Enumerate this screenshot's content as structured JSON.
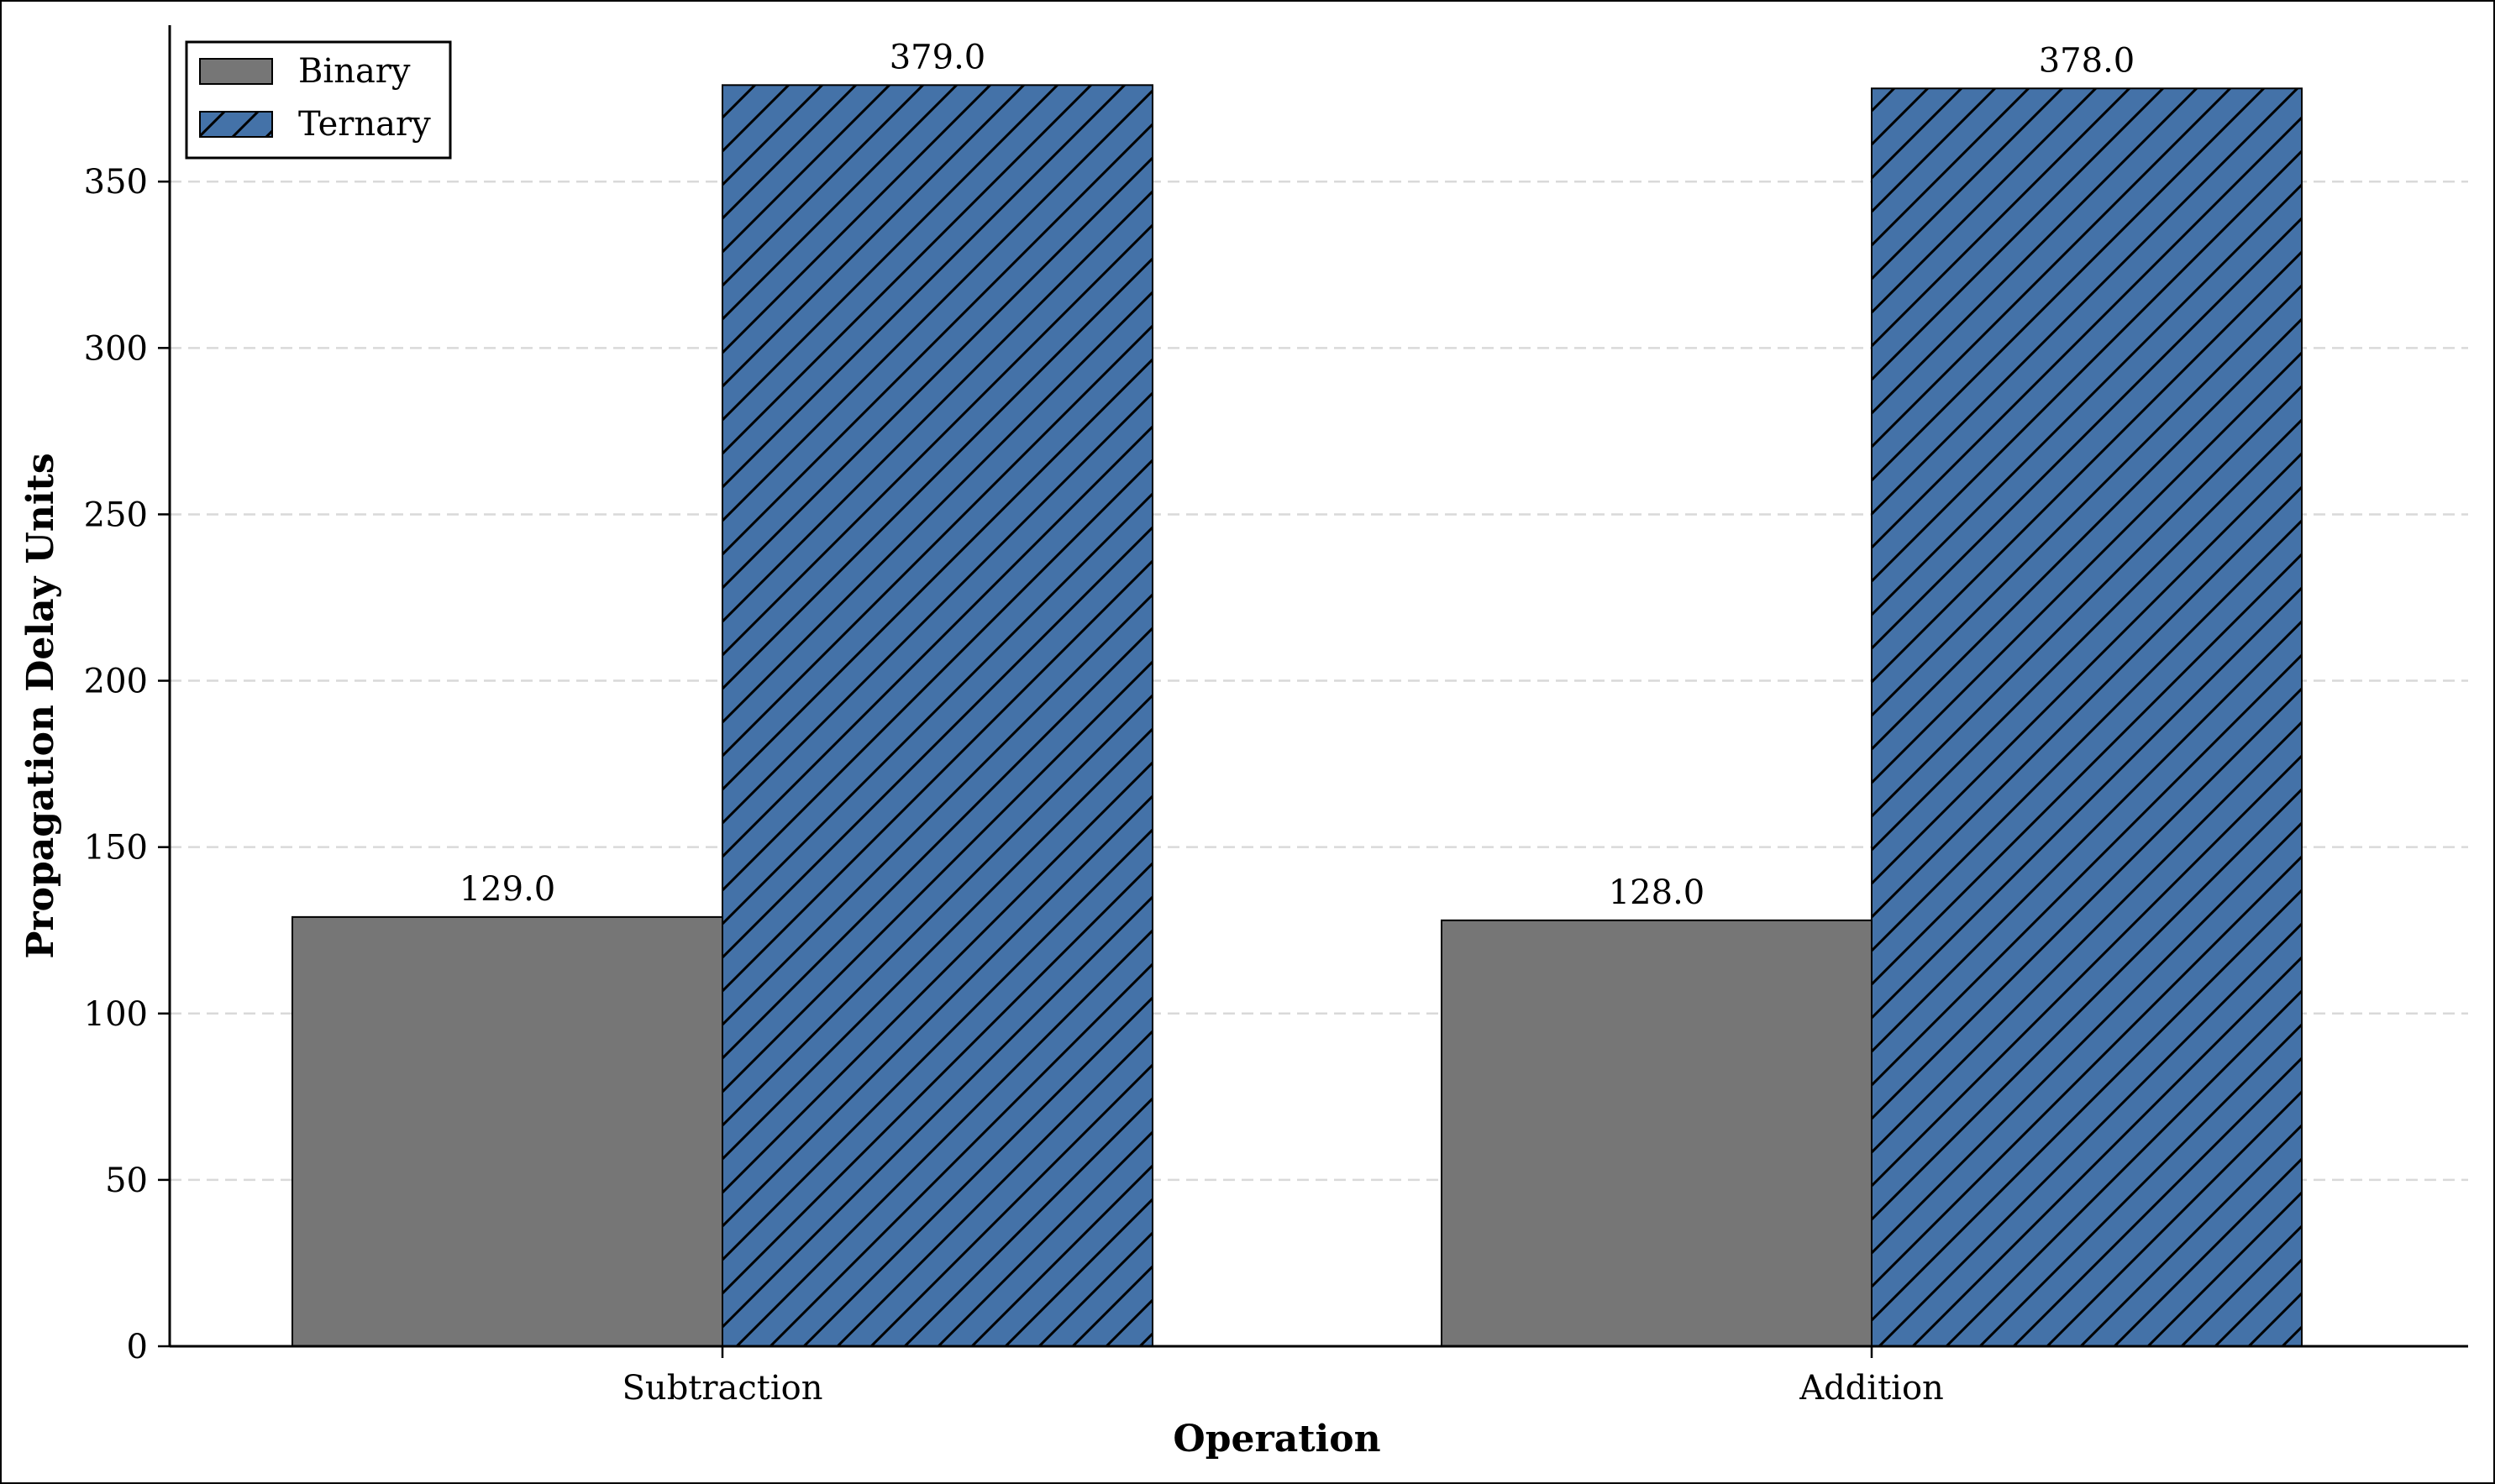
{
  "chart_data": {
    "type": "bar",
    "title": "",
    "xlabel": "Operation",
    "ylabel": "Propagation Delay Units",
    "categories": [
      "Subtraction",
      "Addition"
    ],
    "series": [
      {
        "name": "Binary",
        "values": [
          129.0,
          128.0
        ],
        "color": "#767676",
        "hatch": "none"
      },
      {
        "name": "Ternary",
        "values": [
          379.0,
          378.0
        ],
        "color": "#4472a8",
        "hatch": "diagonal"
      }
    ],
    "data_labels": [
      [
        "129.0",
        "128.0"
      ],
      [
        "379.0",
        "378.0"
      ]
    ],
    "ylim": [
      0,
      397
    ],
    "yticks": [
      0,
      50,
      100,
      150,
      200,
      250,
      300,
      350
    ],
    "grid": "y-dashed",
    "legend_position": "top-left"
  }
}
